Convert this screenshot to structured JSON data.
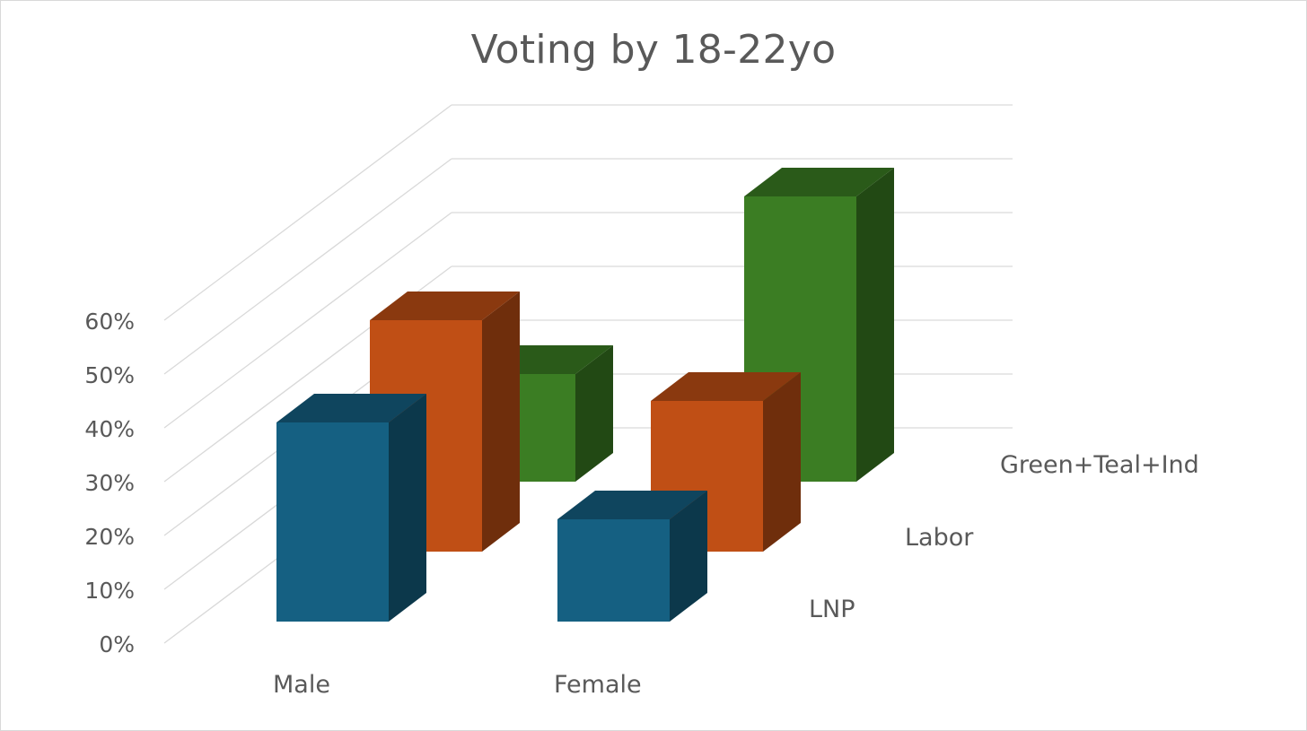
{
  "chart_data": {
    "type": "bar",
    "subtype": "3d-column",
    "title": "Voting by 18-22yo",
    "categories": [
      "Male",
      "Female"
    ],
    "series": [
      {
        "name": "LNP",
        "values": [
          37,
          19
        ]
      },
      {
        "name": "Labor",
        "values": [
          43,
          28
        ]
      },
      {
        "name": "Green+Teal+Ind",
        "values": [
          20,
          53
        ]
      }
    ],
    "yticks": [
      "0%",
      "10%",
      "20%",
      "30%",
      "40%",
      "50%",
      "60%"
    ],
    "ylim": [
      0,
      60
    ],
    "grid": true,
    "colors": {
      "LNP": "#156082",
      "Labor": "#C04F15",
      "Green+Teal+Ind": "#3B7D23",
      "grid": "#d9d9d9",
      "text": "#595959"
    }
  }
}
